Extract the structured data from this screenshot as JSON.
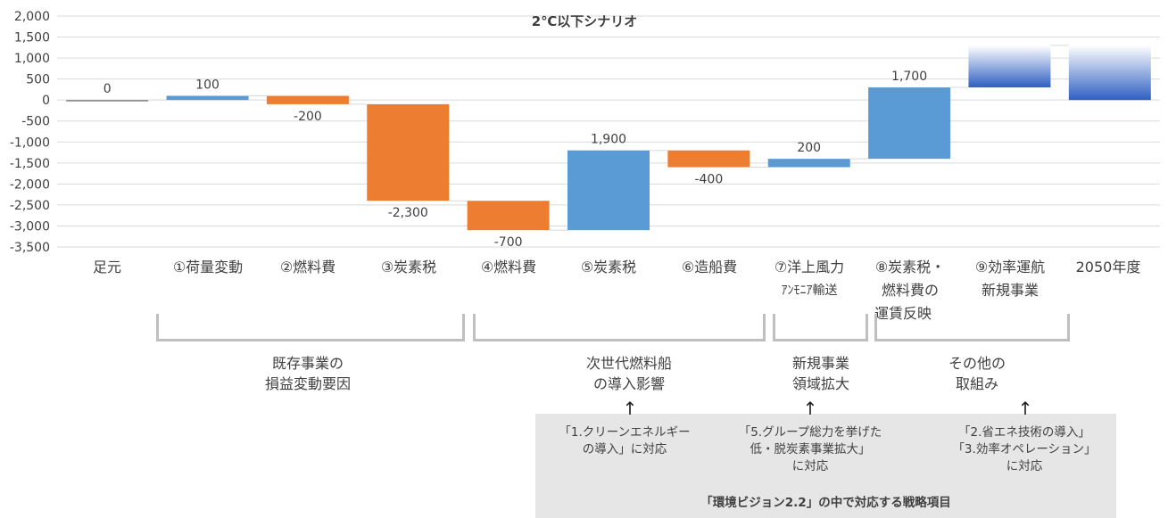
{
  "chart_data": {
    "type": "waterfall",
    "title": "2℃以下シナリオ",
    "ylim": [
      -3500,
      2000
    ],
    "y_ticks": [
      2000,
      1500,
      1000,
      500,
      0,
      -500,
      -1000,
      -1500,
      -2000,
      -2500,
      -3000,
      -3500
    ],
    "y_tick_labels": [
      "2,000",
      "1,500",
      "1,000",
      "500",
      "0",
      "-500",
      "-1,000",
      "-1,500",
      "-2,000",
      "-2,500",
      "-3,000",
      "-3,500"
    ],
    "gridlines": true,
    "colors": {
      "increase": "#5b9bd5",
      "decrease": "#ed7d31",
      "base": "#7f7f7f",
      "future_top": "#ffffff",
      "future_bottom": "#2e5fc1"
    },
    "bars": [
      {
        "category": "足元",
        "start": 0,
        "end": 0,
        "label": "0",
        "kind": "base"
      },
      {
        "category": "①荷量変動",
        "start": 0,
        "end": 100,
        "label": "100",
        "kind": "increase"
      },
      {
        "category": "②燃料費",
        "start": 100,
        "end": -100,
        "label": "-200",
        "kind": "decrease"
      },
      {
        "category": "③炭素税",
        "start": -100,
        "end": -2400,
        "label": "-2,300",
        "kind": "decrease"
      },
      {
        "category": "④燃料費",
        "start": -2400,
        "end": -3100,
        "label": "-700",
        "kind": "decrease"
      },
      {
        "category": "⑤炭素税",
        "start": -3100,
        "end": -1200,
        "label": "1,900",
        "kind": "increase"
      },
      {
        "category": "⑥造船費",
        "start": -1200,
        "end": -1600,
        "label": "-400",
        "kind": "decrease"
      },
      {
        "category": "⑦洋上風力 アンモニア輸送",
        "start": -1600,
        "end": -1400,
        "label": "200",
        "kind": "increase"
      },
      {
        "category": "⑧炭素税・燃料費の運賃反映",
        "start": -1400,
        "end": 300,
        "label": "1,700",
        "kind": "increase"
      },
      {
        "category": "⑨効率運航 新規事業",
        "start": 300,
        "end": 1300,
        "label": "",
        "kind": "future"
      },
      {
        "category": "2050年度",
        "start": 0,
        "end": 1300,
        "label": "",
        "kind": "future"
      }
    ]
  },
  "categories": [
    {
      "line1": "足元",
      "line2": "",
      "line3": ""
    },
    {
      "line1": "①荷量変動",
      "line2": "",
      "line3": ""
    },
    {
      "line1": "②燃料費",
      "line2": "",
      "line3": ""
    },
    {
      "line1": "③炭素税",
      "line2": "",
      "line3": ""
    },
    {
      "line1": "④燃料費",
      "line2": "",
      "line3": ""
    },
    {
      "line1": "⑤炭素税",
      "line2": "",
      "line3": ""
    },
    {
      "line1": "⑥造船費",
      "line2": "",
      "line3": ""
    },
    {
      "line1": "⑦洋上風力",
      "line2": "ｱﾝﾓﾆｱ輸送",
      "line3": ""
    },
    {
      "line1": "⑧炭素税・",
      "line2": "燃料費の",
      "line3": "運賃反映"
    },
    {
      "line1": "⑨効率運航",
      "line2": "新規事業",
      "line3": ""
    },
    {
      "line1": "2050年度",
      "line2": "",
      "line3": ""
    }
  ],
  "groups": [
    {
      "line1": "既存事業の",
      "line2": "損益変動要因"
    },
    {
      "line1": "次世代燃料船",
      "line2": "の導入影響"
    },
    {
      "line1": "新規事業",
      "line2": "領域拡大"
    },
    {
      "line1": "その他の",
      "line2": "取組み"
    }
  ],
  "strategy": {
    "items": [
      {
        "line1": "「1.クリーンエネルギー",
        "line2": "の導入」に対応",
        "line3": ""
      },
      {
        "line1": "「5.グループ総力を挙げた",
        "line2": "低・脱炭素事業拡大」",
        "line3": "に対応"
      },
      {
        "line1": "「2.省エネ技術の導入」",
        "line2": "「3.効率オペレーション」",
        "line3": "に対応"
      }
    ],
    "footer": "「環境ビジョン2.2」の中で対応する戦略項目"
  }
}
